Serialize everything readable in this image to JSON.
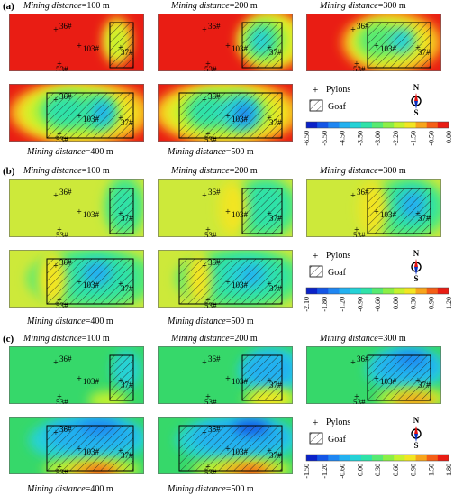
{
  "rows": [
    {
      "label": "(a)",
      "palette": [
        "#0b22c8",
        "#1456e6",
        "#1f86f2",
        "#23b1f0",
        "#25d2d6",
        "#2fe2a8",
        "#57ea72",
        "#8cef46",
        "#c6f22e",
        "#f2e523",
        "#f7a51c",
        "#f45f17",
        "#e91d14"
      ],
      "background": "#e91d14",
      "ticks": [
        "-6.50",
        "-5.50",
        "-4.50",
        "-3.50",
        "-3.00",
        "-2.20",
        "-1.50",
        "-0.50",
        "0.00"
      ],
      "panels": [
        {
          "caption_label": "Mining distance",
          "caption_value": "=100 m"
        },
        {
          "caption_label": "Mining distance",
          "caption_value": "=200 m"
        },
        {
          "caption_label": "Mining distance",
          "caption_value": "=300 m"
        },
        {
          "caption_label": "Mining distance",
          "caption_value": "=400 m"
        },
        {
          "caption_label": "Mining distance",
          "caption_value": "=500 m"
        }
      ]
    },
    {
      "label": "(b)",
      "palette": [
        "#0b22c8",
        "#1456e6",
        "#1f86f2",
        "#23b1f0",
        "#25d2d6",
        "#2fe2a8",
        "#57ea72",
        "#8cef46",
        "#c6f22e",
        "#f2e523",
        "#f7a51c",
        "#f45f17",
        "#e91d14"
      ],
      "background": "#cde93a",
      "ticks": [
        "-2.10",
        "-1.80",
        "-1.20",
        "-0.90",
        "-0.60",
        "0.00",
        "0.30",
        "0.90",
        "1.20"
      ],
      "panels": [
        {
          "caption_label": "Mining distance",
          "caption_value": "=100 m"
        },
        {
          "caption_label": "Mining distance",
          "caption_value": "=200 m"
        },
        {
          "caption_label": "Mining distance",
          "caption_value": "=300 m"
        },
        {
          "caption_label": "Mining distance",
          "caption_value": "=400 m"
        },
        {
          "caption_label": "Mining distance",
          "caption_value": "=500 m"
        }
      ]
    },
    {
      "label": "(c)",
      "palette": [
        "#0b22c8",
        "#1456e6",
        "#1f86f2",
        "#23b1f0",
        "#25d2d6",
        "#2fe2a8",
        "#57ea72",
        "#8cef46",
        "#c6f22e",
        "#f2e523",
        "#f7a51c",
        "#f45f17",
        "#e91d14"
      ],
      "background": "#36d86a",
      "ticks": [
        "-1.50",
        "-1.20",
        "-0.60",
        "0.00",
        "0.30",
        "0.60",
        "0.90",
        "1.50",
        "1.80"
      ],
      "panels": [
        {
          "caption_label": "Mining distance",
          "caption_value": "=100 m"
        },
        {
          "caption_label": "Mining distance",
          "caption_value": "=200 m"
        },
        {
          "caption_label": "Mining distance",
          "caption_value": "=300 m"
        },
        {
          "caption_label": "Mining distance",
          "caption_value": "=400 m"
        },
        {
          "caption_label": "Mining distance",
          "caption_value": "=500 m"
        }
      ]
    }
  ],
  "pylon_labels": {
    "p36": "36#",
    "p103": "103#",
    "p37": "37#",
    "p53": "53#"
  },
  "legend": {
    "pylons": "Pylons",
    "goaf": "Goaf"
  },
  "compass": {
    "north": "N",
    "south": "S"
  }
}
